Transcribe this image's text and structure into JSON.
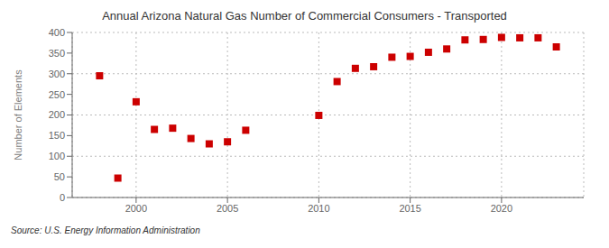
{
  "chart_data": {
    "type": "scatter",
    "title": "Annual Arizona Natural Gas Number of Commercial Consumers - Transported",
    "ylabel": "Number of Elements",
    "source": "Source: U.S. Energy Information Administration",
    "x": [
      1998,
      1999,
      2000,
      2001,
      2002,
      2003,
      2004,
      2005,
      2006,
      2010,
      2011,
      2012,
      2013,
      2014,
      2015,
      2016,
      2017,
      2018,
      2019,
      2020,
      2021,
      2022,
      2023
    ],
    "values": [
      295,
      47,
      232,
      165,
      168,
      143,
      130,
      135,
      163,
      199,
      281,
      313,
      317,
      340,
      342,
      352,
      360,
      382,
      383,
      388,
      387,
      387,
      365
    ],
    "color": "#cc0000",
    "marker": "square",
    "xlim": [
      1996.5,
      2024.5
    ],
    "ylim": [
      0,
      400
    ],
    "xticks": [
      2000,
      2005,
      2010,
      2015,
      2020
    ],
    "yticks": [
      0,
      50,
      100,
      150,
      200,
      250,
      300,
      350,
      400
    ],
    "grid": true
  }
}
